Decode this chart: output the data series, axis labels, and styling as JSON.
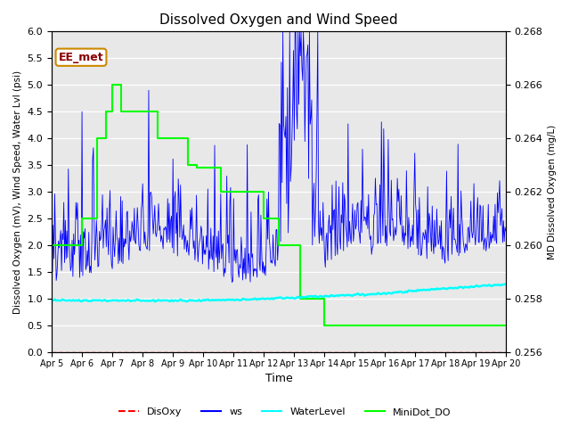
{
  "title": "Dissolved Oxygen and Wind Speed",
  "xlabel": "Time",
  "ylabel_left": "Dissolved Oxygen (mV), Wind Speed, Water Lvl (psi)",
  "ylabel_right": "MD Dissolved Oxygen (mg/L)",
  "annotation": "EE_met",
  "ylim_left": [
    0.0,
    6.0
  ],
  "ylim_right": [
    0.256,
    0.268
  ],
  "x_tick_labels": [
    "Apr 5",
    "Apr 6",
    "Apr 7",
    "Apr 8",
    "Apr 9",
    "Apr 10",
    "Apr 11",
    "Apr 12",
    "Apr 13",
    "Apr 14",
    "Apr 15",
    "Apr 16",
    "Apr 17",
    "Apr 18",
    "Apr 19",
    "Apr 20"
  ],
  "bg_color": "#e8e8e8",
  "minidot_x": [
    0,
    0,
    1.0,
    1.0,
    1.5,
    1.5,
    1.8,
    1.8,
    2.0,
    2.0,
    2.3,
    2.3,
    2.8,
    2.8,
    3.0,
    3.0,
    3.05,
    3.05,
    3.3,
    3.3,
    3.5,
    3.5,
    4.0,
    4.0,
    4.5,
    4.5,
    4.8,
    4.8,
    5.0,
    5.0,
    5.3,
    5.3,
    5.6,
    5.6,
    5.9,
    5.9,
    6.1,
    6.1,
    6.3,
    6.3,
    6.5,
    6.5,
    7.0,
    7.0,
    7.5,
    7.5,
    7.8,
    7.8,
    8.0,
    8.0,
    8.2,
    8.2,
    8.5,
    8.5,
    9.0,
    9.0,
    9.5,
    9.5,
    9.8,
    9.8,
    10.5,
    10.5,
    13.5,
    13.5,
    14.2,
    14.2,
    15.0
  ],
  "minidot_y": [
    1.5,
    2.0,
    2.0,
    2.5,
    2.5,
    4.0,
    4.0,
    4.5,
    4.5,
    5.0,
    5.0,
    4.5,
    4.5,
    4.5,
    4.5,
    4.5,
    4.5,
    4.5,
    4.5,
    4.5,
    4.5,
    4.0,
    4.0,
    4.0,
    4.0,
    3.5,
    3.5,
    3.45,
    3.45,
    3.45,
    3.45,
    3.45,
    3.45,
    3.0,
    3.0,
    3.0,
    3.0,
    3.0,
    3.0,
    3.0,
    3.0,
    3.0,
    3.0,
    2.5,
    2.5,
    2.0,
    2.0,
    2.0,
    2.0,
    2.0,
    2.0,
    1.0,
    1.0,
    1.0,
    1.0,
    0.5,
    0.5,
    0.5,
    0.5,
    0.5,
    0.5,
    0.5,
    0.5,
    0.5,
    0.5,
    0.5,
    0.5
  ],
  "water_level_x": [
    0,
    5,
    7,
    9,
    11,
    13,
    15
  ],
  "water_level_y": [
    0.97,
    0.97,
    1.0,
    1.05,
    1.1,
    1.2,
    1.27
  ]
}
